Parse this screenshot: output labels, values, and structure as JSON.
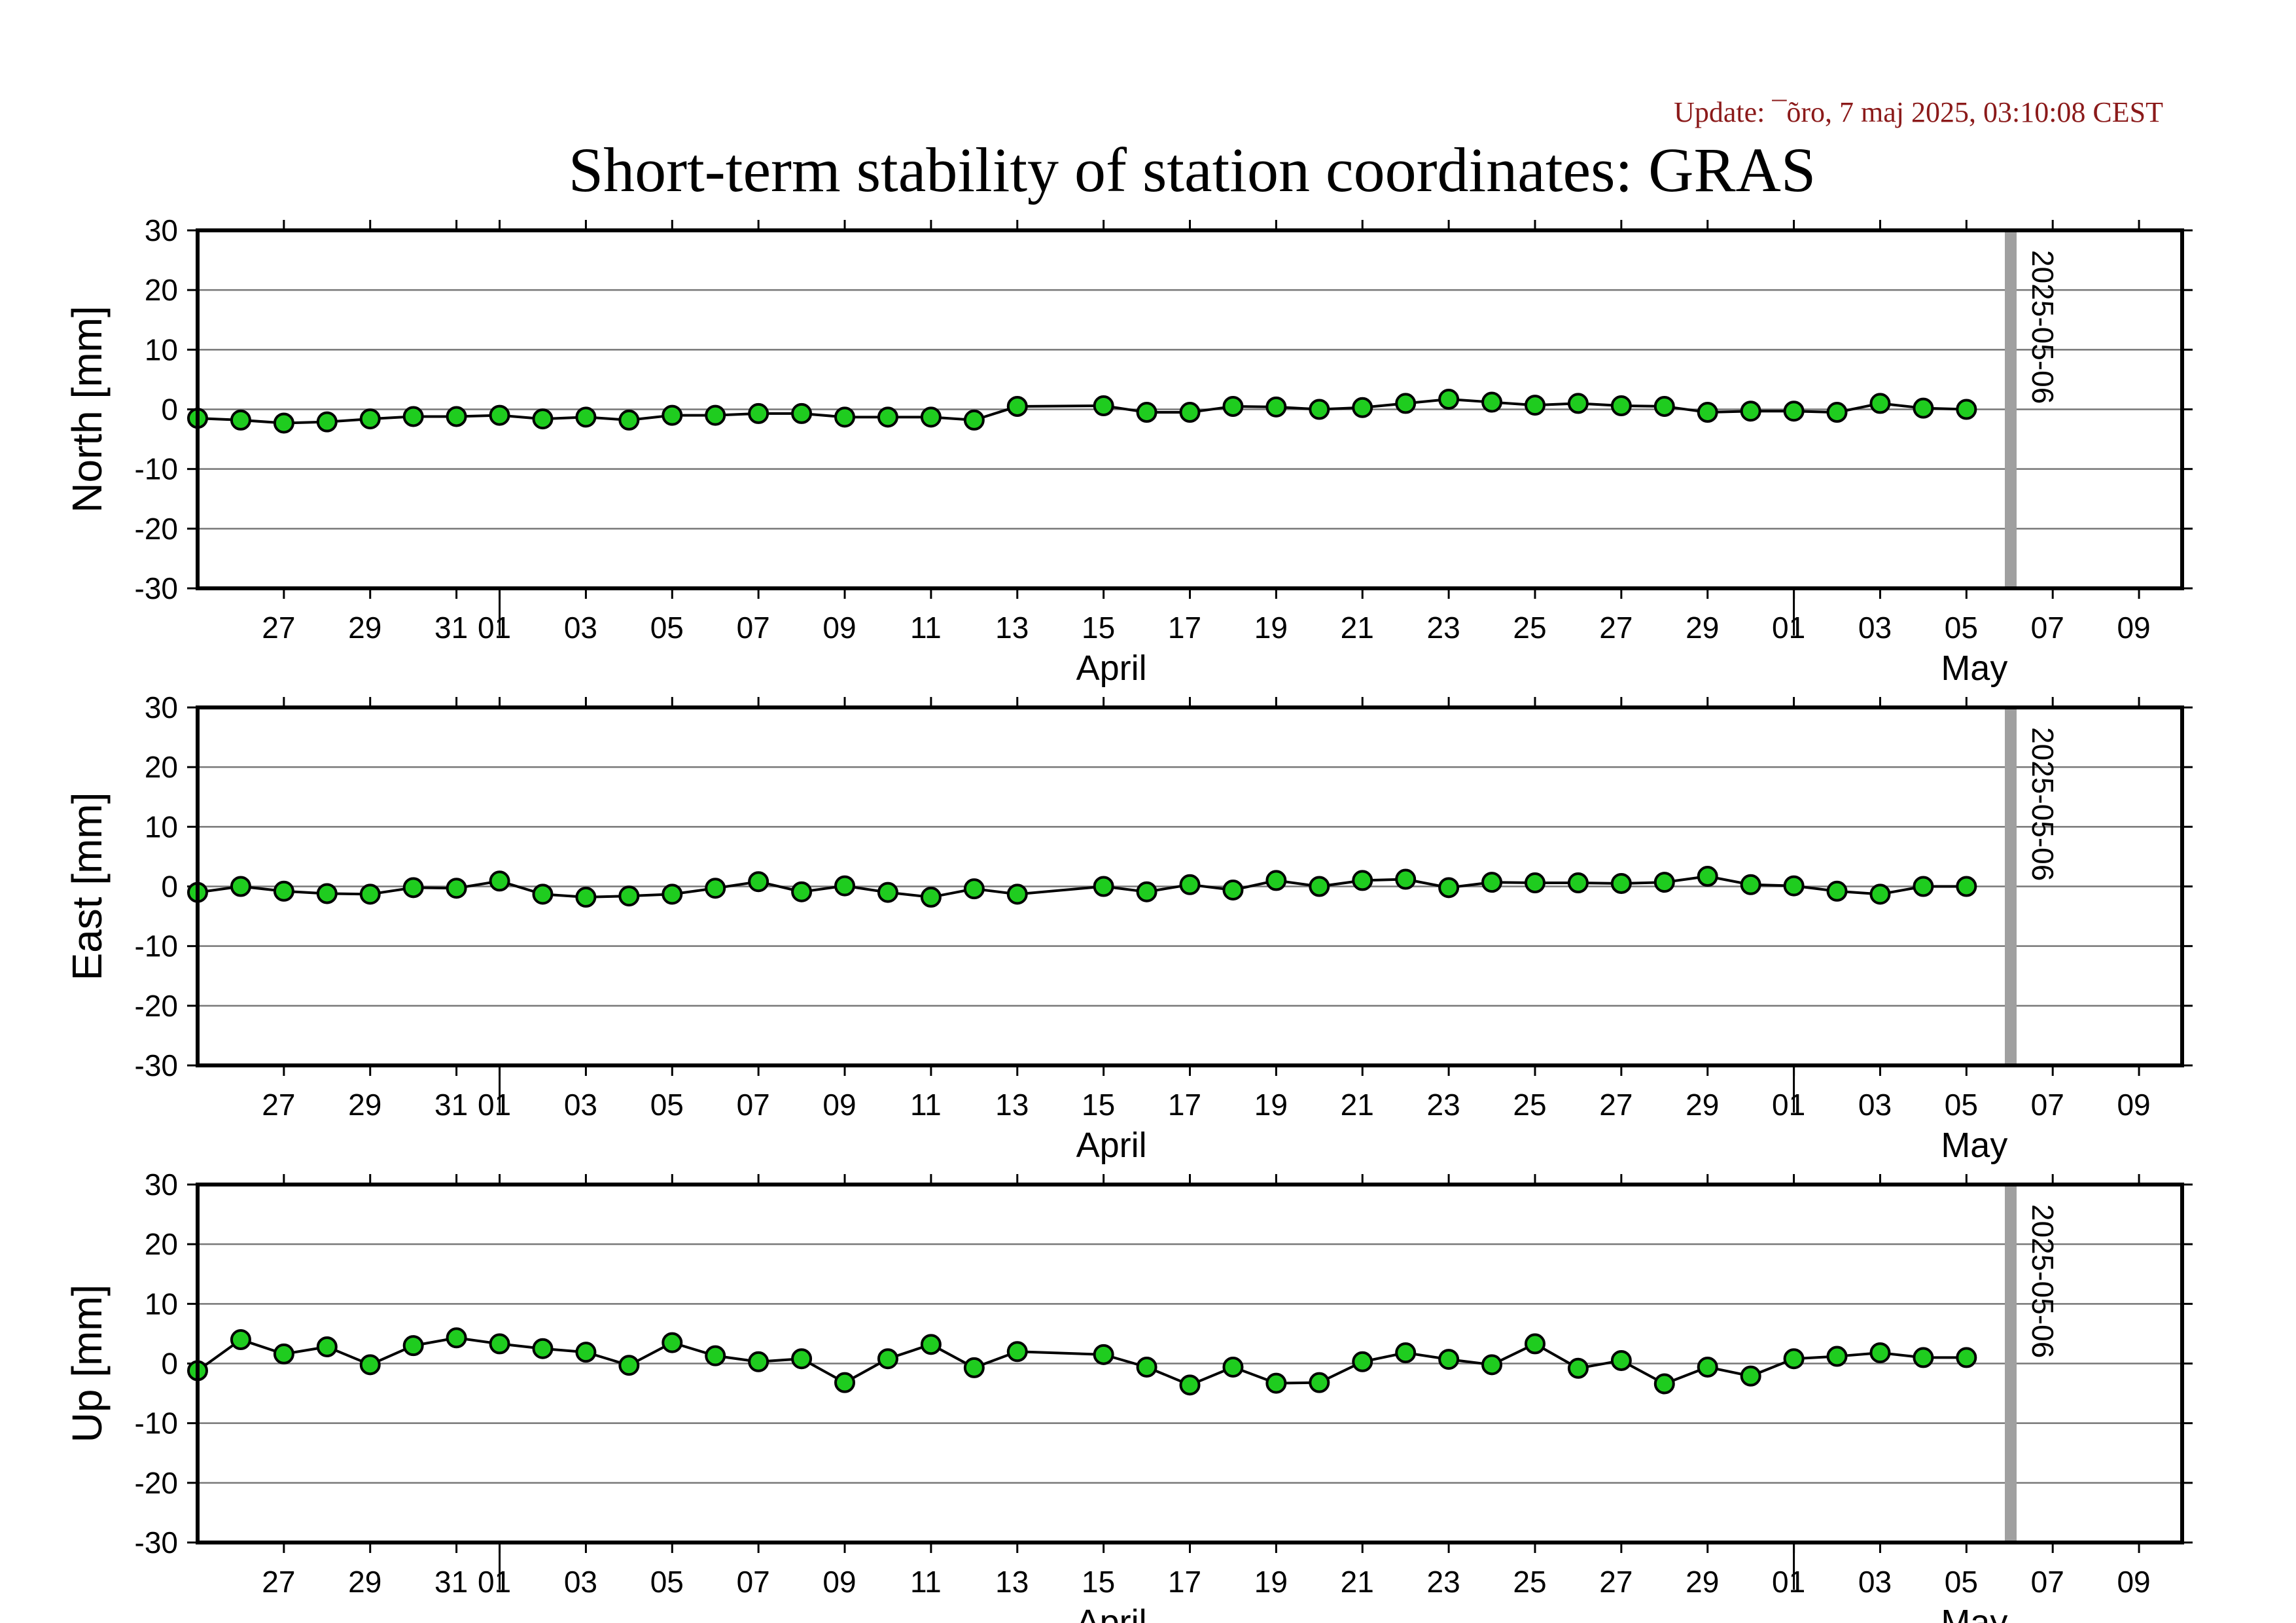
{
  "header": {
    "update": "Update: ¯õro, 7 maj 2025, 03:10:08 CEST",
    "title": "Short-term stability of station coordinates: GRAS"
  },
  "style": {
    "marker_fill": "#1fcc1f",
    "marker_stroke": "#000000",
    "line_color": "#000000",
    "gridline_color": "#777777",
    "vline_color": "#a0a0a0"
  },
  "axis_x": {
    "start": "2025-03-25",
    "end": "2025-05-10",
    "tick_labels": [
      "27",
      "29",
      "31",
      "01",
      "03",
      "05",
      "07",
      "09",
      "11",
      "13",
      "15",
      "17",
      "19",
      "21",
      "23",
      "25",
      "27",
      "29",
      "01",
      "03",
      "05",
      "07",
      "09"
    ],
    "tick_dates": [
      "2025-03-27",
      "2025-03-29",
      "2025-03-31",
      "2025-04-01",
      "2025-04-03",
      "2025-04-05",
      "2025-04-07",
      "2025-04-09",
      "2025-04-11",
      "2025-04-13",
      "2025-04-15",
      "2025-04-17",
      "2025-04-19",
      "2025-04-21",
      "2025-04-23",
      "2025-04-25",
      "2025-04-27",
      "2025-04-29",
      "2025-05-01",
      "2025-05-03",
      "2025-05-05",
      "2025-05-07",
      "2025-05-09"
    ],
    "month_labels": [
      {
        "text": "April",
        "date": "2025-04-15"
      },
      {
        "text": "May",
        "date": "2025-05-05"
      }
    ],
    "month_boundaries": [
      "2025-04-01",
      "2025-05-01"
    ]
  },
  "marker": {
    "date": "2025-05-06",
    "label": "2025-05-06"
  },
  "chart_data": [
    {
      "type": "line",
      "ylabel": "North [mm]",
      "ylim": [
        -30,
        30
      ],
      "yticks": [
        "30",
        "20",
        "10",
        "0",
        "-10",
        "-20",
        "-30"
      ],
      "grid": true,
      "x": [
        "2025-03-25",
        "2025-03-26",
        "2025-03-27",
        "2025-03-28",
        "2025-03-29",
        "2025-03-30",
        "2025-03-31",
        "2025-04-01",
        "2025-04-02",
        "2025-04-03",
        "2025-04-04",
        "2025-04-05",
        "2025-04-06",
        "2025-04-07",
        "2025-04-08",
        "2025-04-09",
        "2025-04-10",
        "2025-04-11",
        "2025-04-12",
        "2025-04-13",
        "2025-04-15",
        "2025-04-16",
        "2025-04-17",
        "2025-04-18",
        "2025-04-19",
        "2025-04-20",
        "2025-04-21",
        "2025-04-22",
        "2025-04-23",
        "2025-04-24",
        "2025-04-25",
        "2025-04-26",
        "2025-04-27",
        "2025-04-28",
        "2025-04-29",
        "2025-04-30",
        "2025-05-01",
        "2025-05-02",
        "2025-05-03",
        "2025-05-04",
        "2025-05-05"
      ],
      "values": [
        -1.5,
        -1.8,
        -2.3,
        -2.1,
        -1.6,
        -1.2,
        -1.2,
        -1.0,
        -1.6,
        -1.3,
        -1.8,
        -1.0,
        -1.0,
        -0.7,
        -0.7,
        -1.3,
        -1.3,
        -1.3,
        -1.8,
        0.5,
        0.6,
        -0.5,
        -0.5,
        0.5,
        0.4,
        0.0,
        0.3,
        1.0,
        1.7,
        1.2,
        0.7,
        1.0,
        0.6,
        0.5,
        -0.5,
        -0.3,
        -0.3,
        -0.5,
        1.0,
        0.2,
        0.0
      ]
    },
    {
      "type": "line",
      "ylabel": "East [mm]",
      "ylim": [
        -30,
        30
      ],
      "yticks": [
        "30",
        "20",
        "10",
        "0",
        "-10",
        "-20",
        "-30"
      ],
      "grid": true,
      "x": [
        "2025-03-25",
        "2025-03-26",
        "2025-03-27",
        "2025-03-28",
        "2025-03-29",
        "2025-03-30",
        "2025-03-31",
        "2025-04-01",
        "2025-04-02",
        "2025-04-03",
        "2025-04-04",
        "2025-04-05",
        "2025-04-06",
        "2025-04-07",
        "2025-04-08",
        "2025-04-09",
        "2025-04-10",
        "2025-04-11",
        "2025-04-12",
        "2025-04-13",
        "2025-04-15",
        "2025-04-16",
        "2025-04-17",
        "2025-04-18",
        "2025-04-19",
        "2025-04-20",
        "2025-04-21",
        "2025-04-22",
        "2025-04-23",
        "2025-04-24",
        "2025-04-25",
        "2025-04-26",
        "2025-04-27",
        "2025-04-28",
        "2025-04-29",
        "2025-04-30",
        "2025-05-01",
        "2025-05-02",
        "2025-05-03",
        "2025-05-04",
        "2025-05-05"
      ],
      "values": [
        -1.0,
        0.0,
        -0.8,
        -1.2,
        -1.3,
        -0.2,
        -0.3,
        0.9,
        -1.3,
        -1.8,
        -1.6,
        -1.3,
        -0.3,
        0.8,
        -0.9,
        0.1,
        -1.0,
        -1.8,
        -0.4,
        -1.3,
        0.0,
        -0.9,
        0.3,
        -0.6,
        1.0,
        0.0,
        1.0,
        1.2,
        -0.2,
        0.7,
        0.6,
        0.6,
        0.5,
        0.7,
        1.7,
        0.3,
        0.1,
        -0.8,
        -1.3,
        0.0,
        0.0
      ]
    },
    {
      "type": "line",
      "ylabel": "Up [mm]",
      "ylim": [
        -30,
        30
      ],
      "yticks": [
        "30",
        "20",
        "10",
        "0",
        "-10",
        "-20",
        "-30"
      ],
      "grid": true,
      "x": [
        "2025-03-25",
        "2025-03-26",
        "2025-03-27",
        "2025-03-28",
        "2025-03-29",
        "2025-03-30",
        "2025-03-31",
        "2025-04-01",
        "2025-04-02",
        "2025-04-03",
        "2025-04-04",
        "2025-04-05",
        "2025-04-06",
        "2025-04-07",
        "2025-04-08",
        "2025-04-09",
        "2025-04-10",
        "2025-04-11",
        "2025-04-12",
        "2025-04-13",
        "2025-04-15",
        "2025-04-16",
        "2025-04-17",
        "2025-04-18",
        "2025-04-19",
        "2025-04-20",
        "2025-04-21",
        "2025-04-22",
        "2025-04-23",
        "2025-04-24",
        "2025-04-25",
        "2025-04-26",
        "2025-04-27",
        "2025-04-28",
        "2025-04-29",
        "2025-04-30",
        "2025-05-01",
        "2025-05-02",
        "2025-05-03",
        "2025-05-04",
        "2025-05-05"
      ],
      "values": [
        -1.2,
        4.0,
        1.6,
        2.8,
        -0.2,
        3.0,
        4.3,
        3.3,
        2.5,
        1.9,
        -0.3,
        3.5,
        1.3,
        0.3,
        0.8,
        -3.2,
        0.8,
        3.2,
        -0.7,
        2.0,
        1.5,
        -0.6,
        -3.6,
        -0.6,
        -3.3,
        -3.2,
        0.3,
        1.8,
        0.7,
        -0.2,
        3.3,
        -0.8,
        0.5,
        -3.4,
        -0.6,
        -2.1,
        0.8,
        1.2,
        1.8,
        1.0,
        1.0
      ]
    }
  ]
}
